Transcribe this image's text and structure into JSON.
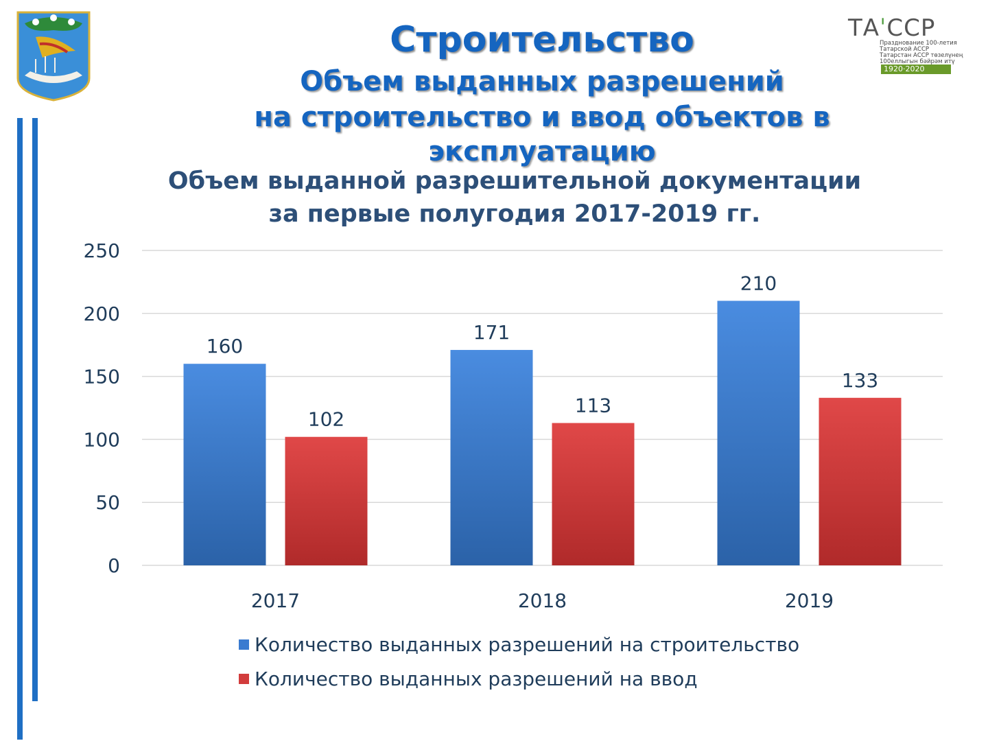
{
  "title": "Строительство",
  "subtitle_lines": [
    "Объем выданных разрешений",
    "на строительство и ввод объектов в",
    "эксплуатацию"
  ],
  "logo": {
    "brand_left": "ТА",
    "brand_right": "ССР",
    "captions": [
      "Празднование 100-летия",
      "Татарской АССР",
      "Татарстан АССР төзелүнең",
      "100еллыгын бәйрәм итү"
    ],
    "years": "1920·2020"
  },
  "colors": {
    "accent": "#1565c0",
    "series_blue": "#3a7bd0",
    "series_red": "#d23c3c",
    "title_dark": "#2d4f78"
  },
  "chart_data": {
    "type": "bar",
    "title_lines": [
      "Объем выданной разрешительной документации",
      "за первые полугодия 2017-2019 гг."
    ],
    "categories": [
      "2017",
      "2018",
      "2019"
    ],
    "series": [
      {
        "name": "Количество выданных разрешений на строительство",
        "values": [
          160,
          171,
          210
        ],
        "color": "#3a7bd0"
      },
      {
        "name": "Количество выданных разрешений на ввод",
        "values": [
          102,
          113,
          133
        ],
        "color": "#d23c3c"
      }
    ],
    "ylim": [
      0,
      250
    ],
    "yticks": [
      "0",
      "50",
      "100",
      "150",
      "200",
      "250"
    ],
    "grid": true,
    "legend_position": "bottom",
    "xlabel": "",
    "ylabel": ""
  }
}
